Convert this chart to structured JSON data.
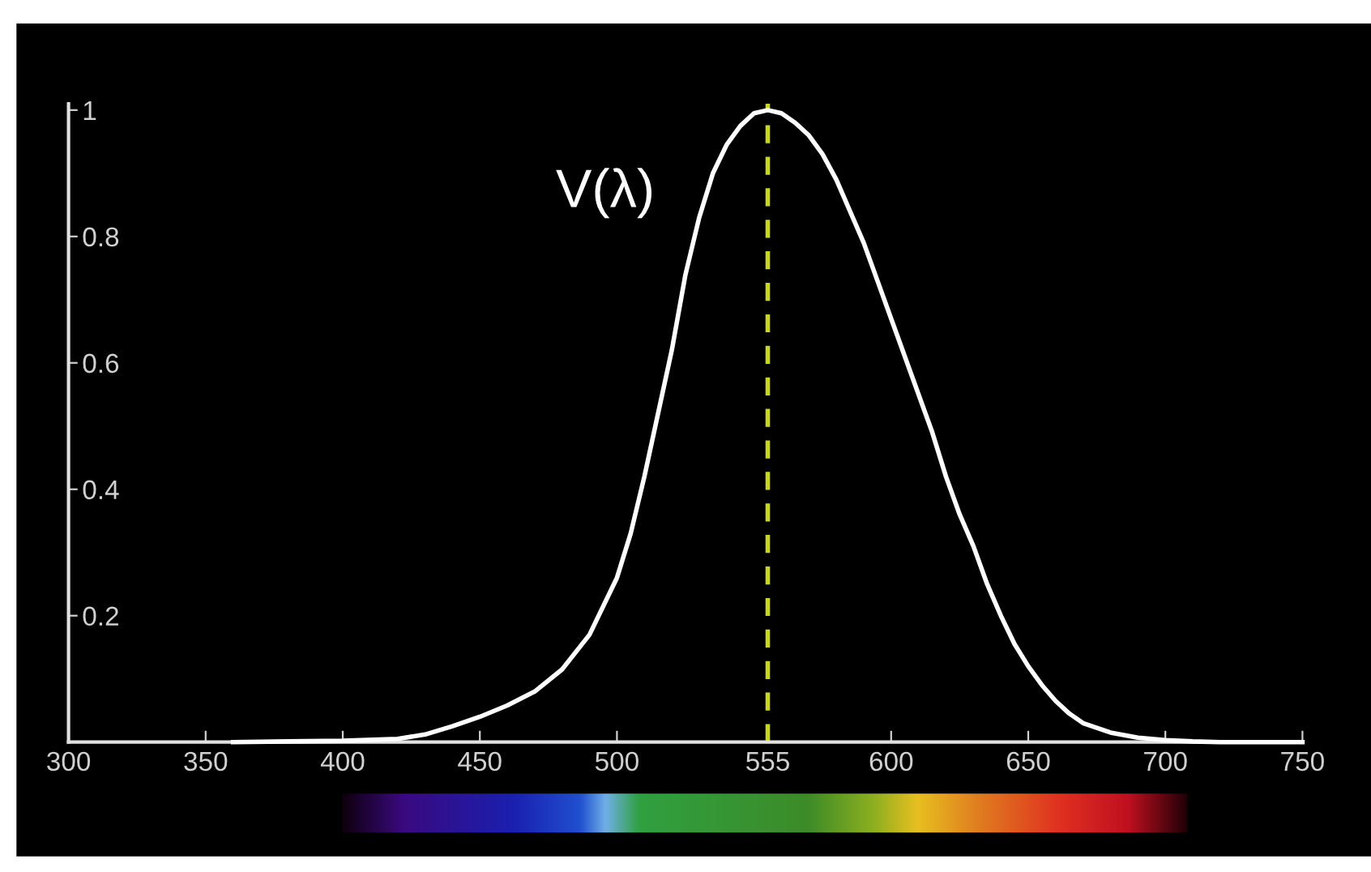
{
  "chart_data": {
    "type": "line",
    "x": [
      360,
      380,
      400,
      420,
      430,
      440,
      450,
      460,
      470,
      480,
      490,
      500,
      505,
      510,
      515,
      520,
      525,
      530,
      535,
      540,
      545,
      550,
      555,
      560,
      565,
      570,
      575,
      580,
      585,
      590,
      595,
      600,
      605,
      610,
      615,
      620,
      625,
      630,
      635,
      640,
      645,
      650,
      655,
      660,
      665,
      670,
      680,
      690,
      700,
      710,
      720,
      750
    ],
    "series": [
      {
        "name": "V(λ)",
        "color": "#ffffff",
        "values": [
          0,
          0.001,
          0.002,
          0.005,
          0.012,
          0.025,
          0.04,
          0.058,
          0.08,
          0.115,
          0.17,
          0.26,
          0.33,
          0.42,
          0.52,
          0.62,
          0.74,
          0.83,
          0.9,
          0.945,
          0.975,
          0.995,
          1.0,
          0.995,
          0.98,
          0.96,
          0.93,
          0.89,
          0.84,
          0.79,
          0.73,
          0.67,
          0.61,
          0.55,
          0.49,
          0.42,
          0.36,
          0.31,
          0.25,
          0.2,
          0.155,
          0.12,
          0.09,
          0.065,
          0.045,
          0.03,
          0.015,
          0.007,
          0.003,
          0.001,
          0,
          0
        ]
      }
    ],
    "xlim": [
      300,
      750
    ],
    "ylim": [
      0,
      1.01
    ],
    "xticks": [
      300,
      350,
      400,
      450,
      500,
      555,
      600,
      650,
      700,
      750
    ],
    "yticks": [
      0.2,
      0.4,
      0.6,
      0.8,
      1
    ],
    "ref_lines": [
      {
        "axis": "x",
        "value": 555,
        "color": "#c8d820",
        "line_style": "dashed"
      }
    ],
    "grid": false,
    "legend": false,
    "marker": "none",
    "line_style": "solid"
  }
}
